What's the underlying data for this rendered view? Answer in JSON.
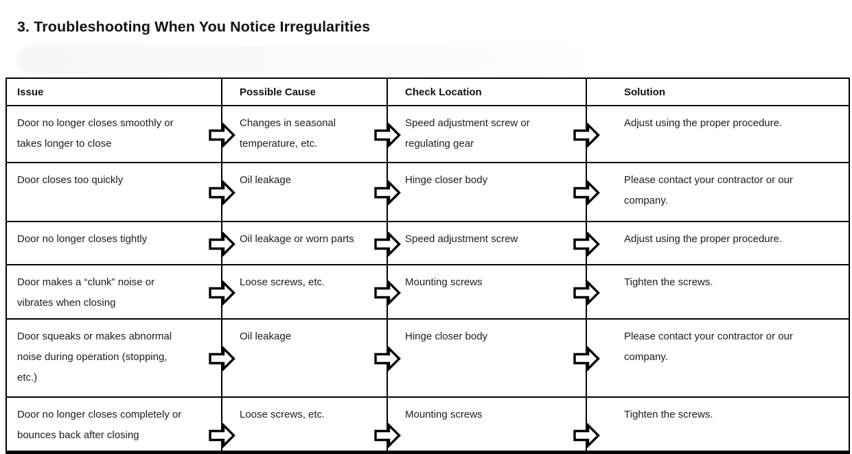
{
  "page": {
    "title": "3. Troubleshooting When You Notice Irregularities"
  },
  "table": {
    "headers": [
      {
        "id": "issue",
        "label": "Issue"
      },
      {
        "id": "possible_cause",
        "label": "Possible Cause"
      },
      {
        "id": "check_location",
        "label": "Check Location"
      },
      {
        "id": "solution",
        "label": "Solution"
      }
    ],
    "arrow_icon": "right-block-arrow-icon",
    "rows": [
      {
        "issue": "Door no longer closes smoothly or\ntakes longer to close",
        "possible_cause": "Changes in seasonal\ntemperature, etc.",
        "check_location": "Speed adjustment screw or\nregulating gear",
        "solution": "Adjust using the proper procedure."
      },
      {
        "issue": "Door closes too quickly",
        "possible_cause": "Oil leakage",
        "check_location": "Hinge closer body",
        "solution": "Please contact your contractor or our\ncompany."
      },
      {
        "issue": "Door no longer closes tightly",
        "possible_cause": "Oil leakage or worn parts",
        "check_location": "Speed adjustment screw",
        "solution": "Adjust using the proper procedure."
      },
      {
        "issue": "Door makes a “clunk” noise or\nvibrates when closing",
        "possible_cause": "Loose screws, etc.",
        "check_location": "Mounting screws",
        "solution": "Tighten the screws."
      },
      {
        "issue": "Door squeaks or makes abnormal\nnoise during operation (stopping,\netc.)",
        "possible_cause": "Oil leakage",
        "check_location": "Hinge closer body",
        "solution": "Please contact your contractor or our\ncompany."
      },
      {
        "issue": "Door no longer closes completely or\nbounces back after closing",
        "possible_cause": "Loose screws, etc.",
        "check_location": "Mounting screws",
        "solution": "Tighten the screws."
      }
    ]
  },
  "colors": {
    "background": "#ffffff",
    "border": "#000000",
    "text": "#1b1b1b",
    "title": "#111111",
    "arrow_fill": "#ffffff",
    "arrow_outline": "#000000"
  }
}
